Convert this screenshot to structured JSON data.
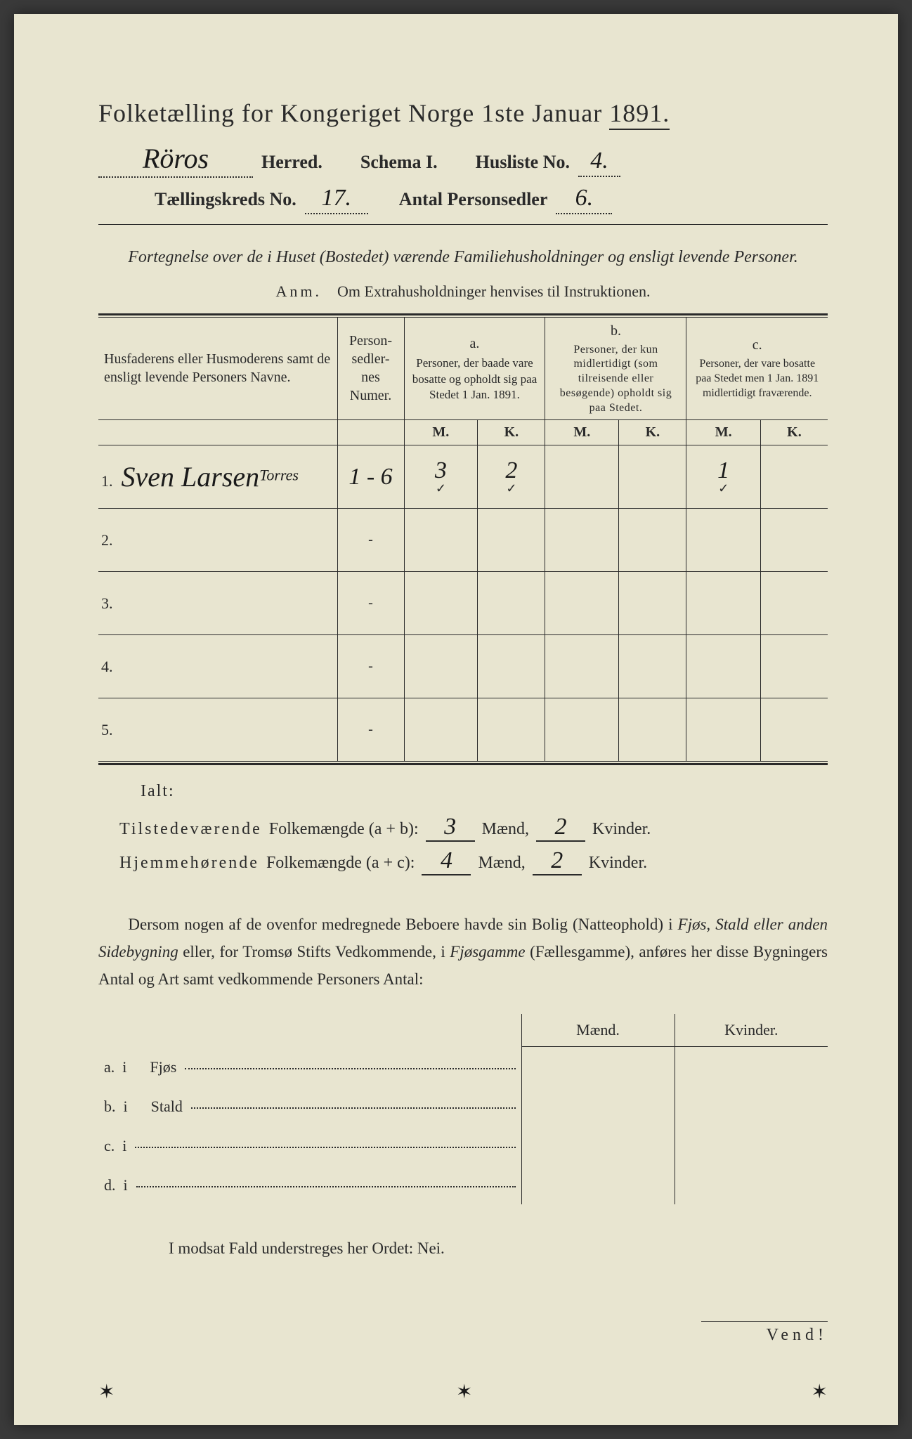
{
  "colors": {
    "paper": "#e8e5d0",
    "ink": "#2a2a2a",
    "handwriting": "#1a1a1a",
    "background": "#3a3a3a"
  },
  "title": {
    "text": "Folketælling for Kongeriget Norge 1ste Januar",
    "year": "1891."
  },
  "header": {
    "herred_value": "Röros",
    "herred_label": "Herred.",
    "schema_label": "Schema I.",
    "husliste_label": "Husliste No.",
    "husliste_value": "4.",
    "kreds_label": "Tællingskreds No.",
    "kreds_value": "17.",
    "personsedler_label": "Antal Personsedler",
    "personsedler_value": "6."
  },
  "subtitle": "Fortegnelse over de i Huset (Bostedet) værende Familiehusholdninger og ensligt levende Personer.",
  "anm": {
    "label": "Anm.",
    "text": "Om Extrahusholdninger henvises til Instruktionen."
  },
  "table": {
    "col_names": "Husfaderens eller Husmoderens samt de ensligt levende Personers Navne.",
    "col_numer": "Person-\nsedler-\nnes\nNumer.",
    "col_a_letter": "a.",
    "col_a_desc": "Personer, der baade vare bosatte og opholdt sig paa Stedet 1 Jan. 1891.",
    "col_b_letter": "b.",
    "col_b_desc": "Personer, der kun midlertidigt (som tilreisende eller besøgende) opholdt sig paa Stedet.",
    "col_c_letter": "c.",
    "col_c_desc": "Personer, der vare bosatte paa Stedet men 1 Jan. 1891 midlertidigt fraværende.",
    "m": "M.",
    "k": "K.",
    "rows": [
      {
        "n": "1.",
        "name": "Sven Larsen",
        "name_sup": "Torres",
        "numer": "1 - 6",
        "a_m": "3",
        "a_k": "2",
        "b_m": "",
        "b_k": "",
        "c_m": "1",
        "c_k": ""
      },
      {
        "n": "2.",
        "name": "",
        "numer": "-",
        "a_m": "",
        "a_k": "",
        "b_m": "",
        "b_k": "",
        "c_m": "",
        "c_k": ""
      },
      {
        "n": "3.",
        "name": "",
        "numer": "-",
        "a_m": "",
        "a_k": "",
        "b_m": "",
        "b_k": "",
        "c_m": "",
        "c_k": ""
      },
      {
        "n": "4.",
        "name": "",
        "numer": "-",
        "a_m": "",
        "a_k": "",
        "b_m": "",
        "b_k": "",
        "c_m": "",
        "c_k": ""
      },
      {
        "n": "5.",
        "name": "",
        "numer": "-",
        "a_m": "",
        "a_k": "",
        "b_m": "",
        "b_k": "",
        "c_m": "",
        "c_k": ""
      }
    ]
  },
  "totals": {
    "ialt": "Ialt:",
    "line1_label_a": "Tilstedeværende",
    "line1_label_b": "Folkemængde (a + b):",
    "line1_m": "3",
    "line1_k": "2",
    "line2_label_a": "Hjemmehørende",
    "line2_label_b": "Folkemængde (a + c):",
    "line2_m": "4",
    "line2_k": "2",
    "maend": "Mænd,",
    "kvinder": "Kvinder."
  },
  "paragraph": "Dersom nogen af de ovenfor medregnede Beboere havde sin Bolig (Natteophold) i Fjøs, Stald eller anden Sidebygning eller, for Tromsø Stifts Vedkommende, i Fjøsgamme (Fællesgamme), anføres her disse Bygningers Antal og Art samt vedkommende Personers Antal:",
  "mk": {
    "maend": "Mænd.",
    "kvinder": "Kvinder.",
    "rows": [
      {
        "label": "a.  i",
        "item": "Fjøs"
      },
      {
        "label": "b.  i",
        "item": "Stald"
      },
      {
        "label": "c.  i",
        "item": ""
      },
      {
        "label": "d.  i",
        "item": ""
      }
    ]
  },
  "modsat": "I modsat Fald understreges her Ordet: Nei.",
  "vend": "Vend!"
}
